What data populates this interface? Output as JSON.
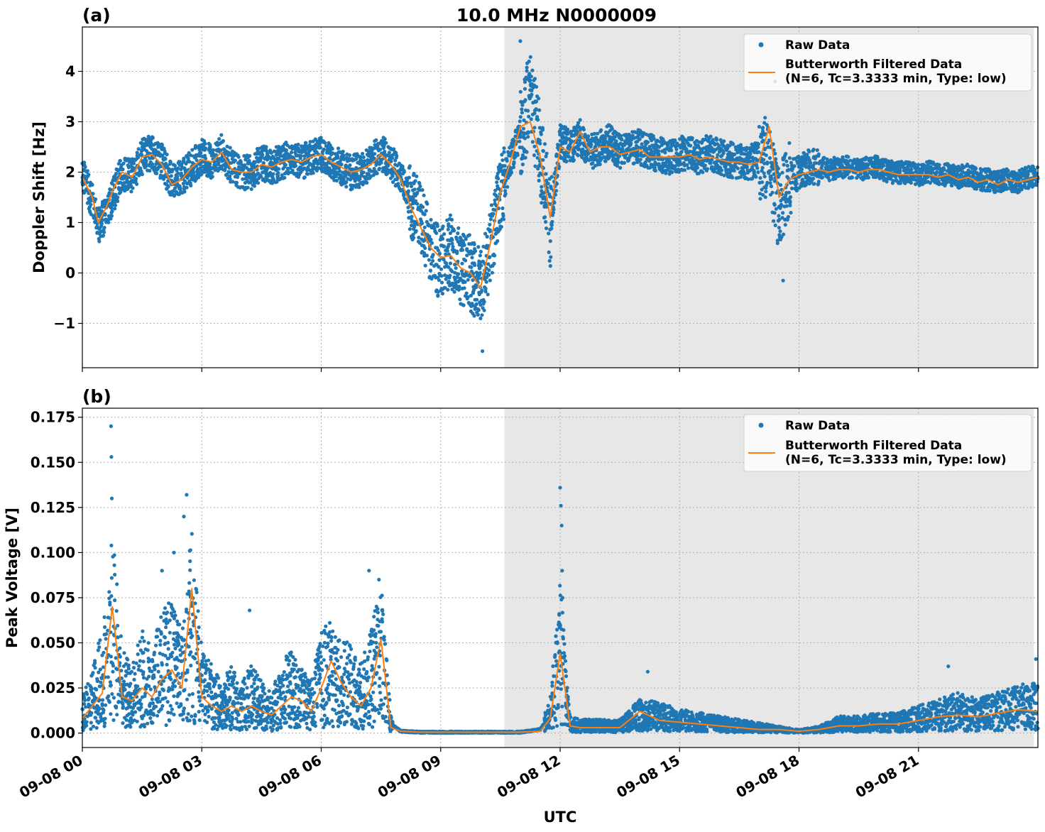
{
  "title": "10.0 MHz N0000009",
  "chart_data": [
    {
      "type": "scatter",
      "panel_label": "(a)",
      "ylabel": "Doppler Shift [Hz]",
      "xlabel": "",
      "xlim_hours": [
        0,
        24
      ],
      "ylim": [
        -1.88,
        4.88
      ],
      "yticks": [
        -1,
        0,
        1,
        2,
        3,
        4
      ],
      "ytick_labels": [
        "−1",
        "0",
        "1",
        "2",
        "3",
        "4"
      ],
      "grid": true,
      "legend": "top-right",
      "shaded_region_hours": [
        10.6,
        23.9
      ],
      "series": [
        {
          "name": "Raw Data",
          "kind": "points",
          "color": "#1f77b4",
          "x": [
            0,
            0.25,
            0.4,
            0.6,
            0.8,
            1.0,
            1.25,
            1.5,
            1.75,
            2.0,
            2.25,
            2.5,
            2.75,
            3.0,
            3.25,
            3.5,
            3.75,
            4.0,
            4.25,
            4.5,
            4.75,
            5.0,
            5.25,
            5.5,
            5.75,
            6.0,
            6.25,
            6.5,
            6.75,
            7.0,
            7.25,
            7.5,
            7.75,
            8.0,
            8.25,
            8.5,
            8.75,
            9.0,
            9.25,
            9.5,
            9.75,
            10.0,
            10.25,
            10.5,
            10.75,
            11.0,
            11.25,
            11.5,
            11.75,
            12.0,
            12.25,
            12.5,
            12.75,
            13.0,
            13.25,
            13.5,
            13.75,
            14.0,
            14.25,
            14.5,
            14.75,
            15.0,
            15.25,
            15.5,
            15.75,
            16.0,
            16.25,
            16.5,
            16.75,
            17.0,
            17.25,
            17.5,
            17.75,
            18.0,
            18.25,
            18.5,
            18.75,
            19.0,
            19.25,
            19.5,
            19.75,
            20.0,
            20.25,
            20.5,
            20.75,
            21.0,
            21.25,
            21.5,
            21.75,
            22.0,
            22.25,
            22.5,
            22.75,
            23.0,
            23.25,
            23.5,
            23.75,
            24.0
          ],
          "values": [
            2.0,
            1.4,
            0.9,
            1.2,
            1.6,
            2.0,
            1.9,
            2.3,
            2.4,
            2.2,
            1.8,
            1.9,
            2.1,
            2.3,
            2.2,
            2.4,
            2.1,
            2.0,
            2.0,
            2.2,
            2.1,
            2.2,
            2.3,
            2.2,
            2.3,
            2.35,
            2.2,
            2.1,
            2.0,
            2.05,
            2.2,
            2.4,
            2.2,
            1.9,
            1.4,
            1.0,
            0.5,
            0.2,
            0.4,
            0.1,
            0.0,
            -0.3,
            0.5,
            1.6,
            2.2,
            2.8,
            3.5,
            2.4,
            1.0,
            2.6,
            2.5,
            2.7,
            2.4,
            2.5,
            2.6,
            2.4,
            2.5,
            2.5,
            2.4,
            2.35,
            2.3,
            2.35,
            2.4,
            2.3,
            2.4,
            2.3,
            2.25,
            2.2,
            2.2,
            2.25,
            2.3,
            1.2,
            1.9,
            2.0,
            2.1,
            2.1,
            2.05,
            2.1,
            2.1,
            2.05,
            2.1,
            2.1,
            2.0,
            2.0,
            2.0,
            1.95,
            2.0,
            1.95,
            1.95,
            1.9,
            1.95,
            1.85,
            1.85,
            1.8,
            1.85,
            1.8,
            1.9,
            1.9
          ]
        },
        {
          "name": "Butterworth Filtered Data\n(N=6, Tc=3.3333 min, Type: low)",
          "kind": "line",
          "color": "#ff7f0e",
          "x": [
            0,
            0.25,
            0.4,
            0.6,
            0.8,
            1.0,
            1.25,
            1.5,
            1.75,
            2.0,
            2.25,
            2.5,
            2.75,
            3.0,
            3.25,
            3.5,
            3.75,
            4.0,
            4.25,
            4.5,
            4.75,
            5.0,
            5.25,
            5.5,
            5.75,
            6.0,
            6.25,
            6.5,
            6.75,
            7.0,
            7.25,
            7.5,
            7.75,
            8.0,
            8.25,
            8.5,
            8.75,
            9.0,
            9.25,
            9.5,
            9.75,
            10.0,
            10.25,
            10.5,
            10.75,
            11.0,
            11.25,
            11.5,
            11.75,
            12.0,
            12.25,
            12.5,
            12.75,
            13.0,
            13.25,
            13.5,
            13.75,
            14.0,
            14.25,
            14.5,
            14.75,
            15.0,
            15.25,
            15.5,
            15.75,
            16.0,
            16.25,
            16.5,
            16.75,
            17.0,
            17.25,
            17.5,
            17.75,
            18.0,
            18.25,
            18.5,
            18.75,
            19.0,
            19.25,
            19.5,
            19.75,
            20.0,
            20.25,
            20.5,
            20.75,
            21.0,
            21.25,
            21.5,
            21.75,
            22.0,
            22.25,
            22.5,
            22.75,
            23.0,
            23.25,
            23.5,
            23.75,
            24.0
          ],
          "values": [
            1.9,
            1.5,
            1.0,
            1.3,
            1.7,
            2.0,
            1.9,
            2.3,
            2.35,
            2.15,
            1.75,
            1.85,
            2.1,
            2.25,
            2.2,
            2.4,
            2.05,
            2.0,
            2.0,
            2.15,
            2.1,
            2.2,
            2.25,
            2.2,
            2.3,
            2.35,
            2.2,
            2.1,
            2.0,
            2.05,
            2.15,
            2.35,
            2.15,
            1.85,
            1.3,
            0.9,
            0.5,
            0.3,
            0.35,
            0.1,
            0.0,
            -0.3,
            0.6,
            1.6,
            2.2,
            2.9,
            3.0,
            2.3,
            1.1,
            2.5,
            2.4,
            2.8,
            2.4,
            2.5,
            2.5,
            2.35,
            2.4,
            2.45,
            2.3,
            2.3,
            2.3,
            2.3,
            2.35,
            2.25,
            2.3,
            2.25,
            2.2,
            2.2,
            2.15,
            2.2,
            2.9,
            1.5,
            1.85,
            1.95,
            2.0,
            2.05,
            2.0,
            2.05,
            2.05,
            2.0,
            2.05,
            2.05,
            2.0,
            1.95,
            1.95,
            1.95,
            1.95,
            1.9,
            1.95,
            1.85,
            1.9,
            1.8,
            1.85,
            1.75,
            1.85,
            1.8,
            1.85,
            1.9
          ]
        }
      ]
    },
    {
      "type": "scatter",
      "panel_label": "(b)",
      "ylabel": "Peak Voltage [V]",
      "xlabel": "UTC",
      "xlim_hours": [
        0,
        24
      ],
      "ylim": [
        -0.008,
        0.18
      ],
      "yticks": [
        0,
        0.025,
        0.05,
        0.075,
        0.1,
        0.125,
        0.15,
        0.175
      ],
      "ytick_labels": [
        "0.000",
        "0.025",
        "0.050",
        "0.075",
        "0.100",
        "0.125",
        "0.150",
        "0.175"
      ],
      "xticks_hours": [
        0,
        3,
        6,
        9,
        12,
        15,
        18,
        21
      ],
      "xtick_labels": [
        "09-08 00",
        "09-08 03",
        "09-08 06",
        "09-08 09",
        "09-08 12",
        "09-08 15",
        "09-08 18",
        "09-08 21"
      ],
      "grid": true,
      "legend": "top-right",
      "shaded_region_hours": [
        10.6,
        23.9
      ],
      "series": [
        {
          "name": "Raw Data",
          "kind": "points",
          "color": "#1f77b4",
          "x": [
            0,
            0.25,
            0.5,
            0.75,
            1.0,
            1.25,
            1.5,
            1.75,
            2.0,
            2.25,
            2.5,
            2.75,
            3.0,
            3.25,
            3.5,
            3.75,
            4.0,
            4.25,
            4.5,
            4.75,
            5.0,
            5.25,
            5.5,
            5.75,
            6.0,
            6.25,
            6.5,
            6.75,
            7.0,
            7.25,
            7.5,
            7.75,
            8.0,
            8.5,
            9.0,
            9.5,
            10.0,
            10.5,
            11.0,
            11.5,
            11.75,
            12.0,
            12.25,
            12.5,
            13.0,
            13.5,
            14.0,
            14.5,
            15.0,
            15.5,
            16.0,
            16.5,
            17.0,
            17.5,
            18.0,
            18.5,
            19.0,
            19.5,
            20.0,
            20.5,
            21.0,
            21.5,
            22.0,
            22.5,
            23.0,
            23.5,
            24.0
          ],
          "values": [
            0.01,
            0.02,
            0.03,
            0.06,
            0.025,
            0.02,
            0.03,
            0.025,
            0.035,
            0.04,
            0.03,
            0.06,
            0.025,
            0.02,
            0.015,
            0.02,
            0.015,
            0.02,
            0.015,
            0.012,
            0.02,
            0.025,
            0.02,
            0.015,
            0.03,
            0.035,
            0.03,
            0.025,
            0.02,
            0.03,
            0.045,
            0.005,
            0.001,
            0.0005,
            0.0005,
            0.0005,
            0.0005,
            0.0005,
            0.0005,
            0.002,
            0.01,
            0.045,
            0.005,
            0.004,
            0.004,
            0.004,
            0.01,
            0.009,
            0.007,
            0.006,
            0.005,
            0.004,
            0.003,
            0.002,
            0.001,
            0.002,
            0.005,
            0.005,
            0.006,
            0.006,
            0.008,
            0.01,
            0.012,
            0.01,
            0.012,
            0.014,
            0.015
          ]
        },
        {
          "name": "Butterworth Filtered Data\n(N=6, Tc=3.3333 min, Type: low)",
          "kind": "line",
          "color": "#ff7f0e",
          "x": [
            0,
            0.25,
            0.5,
            0.75,
            1.0,
            1.25,
            1.5,
            1.75,
            2.0,
            2.25,
            2.5,
            2.75,
            3.0,
            3.25,
            3.5,
            3.75,
            4.0,
            4.25,
            4.5,
            4.75,
            5.0,
            5.25,
            5.5,
            5.75,
            6.0,
            6.25,
            6.5,
            6.75,
            7.0,
            7.25,
            7.5,
            7.75,
            8.0,
            8.5,
            9.0,
            9.5,
            10.0,
            10.5,
            11.0,
            11.5,
            11.75,
            12.0,
            12.25,
            12.5,
            13.0,
            13.5,
            14.0,
            14.5,
            15.0,
            15.5,
            16.0,
            16.5,
            17.0,
            17.5,
            18.0,
            18.5,
            19.0,
            19.5,
            20.0,
            20.5,
            21.0,
            21.5,
            22.0,
            22.5,
            23.0,
            23.5,
            24.0
          ],
          "values": [
            0.008,
            0.015,
            0.022,
            0.07,
            0.02,
            0.018,
            0.025,
            0.02,
            0.03,
            0.035,
            0.025,
            0.08,
            0.02,
            0.015,
            0.012,
            0.015,
            0.012,
            0.015,
            0.012,
            0.01,
            0.015,
            0.02,
            0.018,
            0.012,
            0.025,
            0.04,
            0.028,
            0.02,
            0.015,
            0.025,
            0.052,
            0.003,
            0.001,
            0.0005,
            0.0005,
            0.0005,
            0.0005,
            0.0005,
            0.0005,
            0.001,
            0.008,
            0.044,
            0.004,
            0.003,
            0.003,
            0.003,
            0.012,
            0.007,
            0.006,
            0.005,
            0.004,
            0.003,
            0.002,
            0.002,
            0.001,
            0.002,
            0.004,
            0.004,
            0.005,
            0.005,
            0.007,
            0.009,
            0.01,
            0.009,
            0.011,
            0.013,
            0.012
          ]
        }
      ]
    }
  ]
}
